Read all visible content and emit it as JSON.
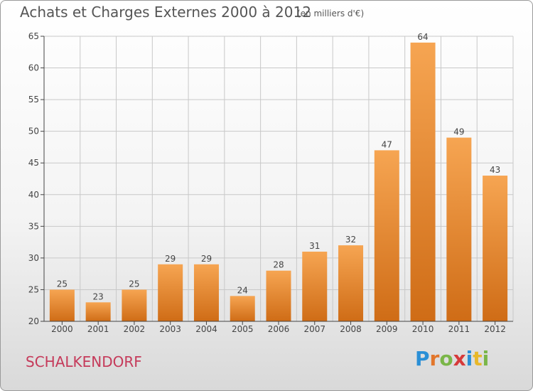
{
  "title": "Achats et Charges Externes 2000 à 2012",
  "subtitle": "(en milliers d'€)",
  "commune": "SCHALKENDORF",
  "logo": {
    "text": "Proxiti",
    "letters": [
      {
        "ch": "P",
        "color": "#2a8fd6"
      },
      {
        "ch": "r",
        "color": "#e2762b"
      },
      {
        "ch": "o",
        "color": "#7ab648"
      },
      {
        "ch": "x",
        "color": "#d63a3a"
      },
      {
        "ch": "i",
        "color": "#2a8fd6"
      },
      {
        "ch": "t",
        "color": "#e8b82a"
      },
      {
        "ch": "i",
        "color": "#7ab648"
      }
    ]
  },
  "colors": {
    "bar_top": "#f6a552",
    "bar_bottom": "#cf6c16",
    "grid": "#c8c8c8",
    "axis": "#444444"
  },
  "chart_data": {
    "type": "bar",
    "categories": [
      "2000",
      "2001",
      "2002",
      "2003",
      "2004",
      "2005",
      "2006",
      "2007",
      "2008",
      "2009",
      "2010",
      "2011",
      "2012"
    ],
    "values": [
      25,
      23,
      25,
      29,
      29,
      24,
      28,
      31,
      32,
      47,
      64,
      49,
      43
    ],
    "ylim": [
      20,
      65
    ],
    "yticks": [
      20,
      25,
      30,
      35,
      40,
      45,
      50,
      55,
      60,
      65
    ],
    "grid": true,
    "legend": "none"
  }
}
